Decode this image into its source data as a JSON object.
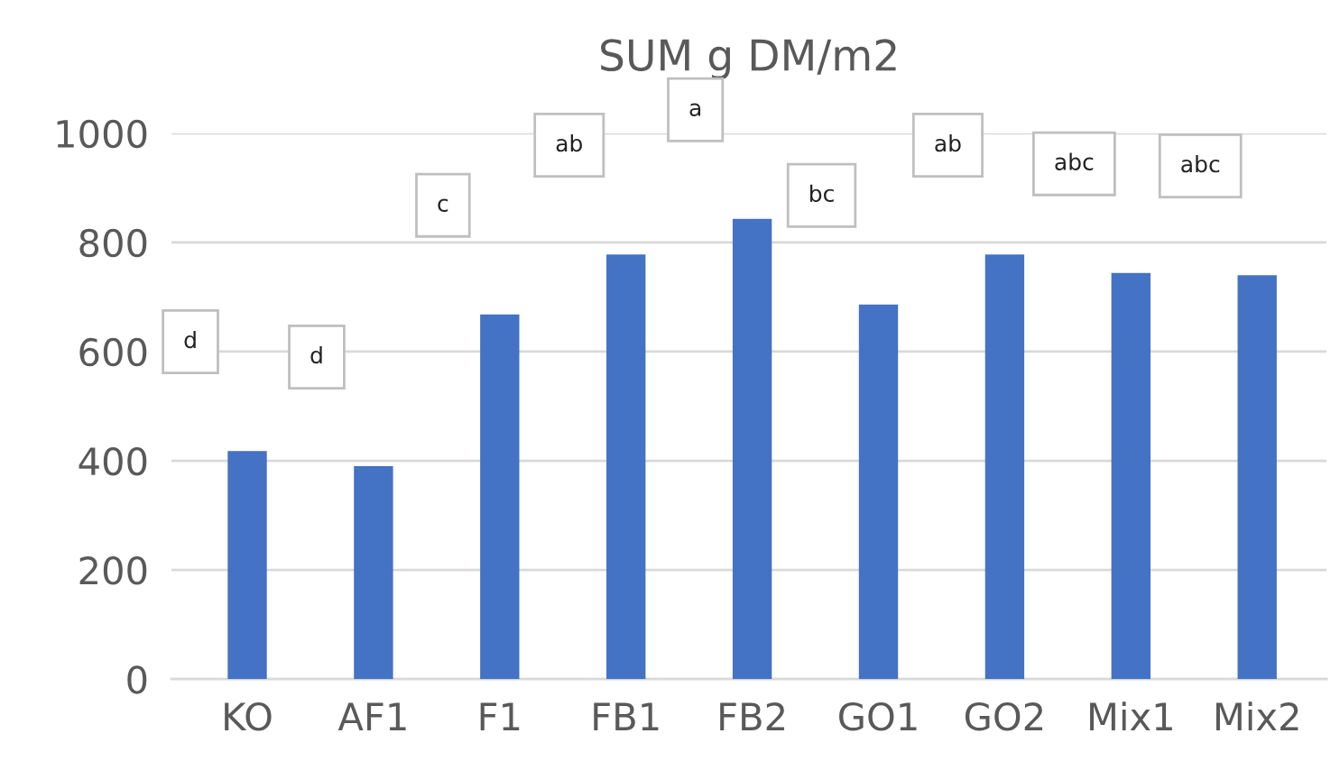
{
  "chart_data": {
    "type": "bar",
    "title": "SUM g DM/m2",
    "categories": [
      "KO",
      "AF1",
      "F1",
      "FB1",
      "FB2",
      "GO1",
      "GO2",
      "Mix1",
      "Mix2"
    ],
    "values": [
      418,
      390,
      668,
      778,
      843,
      686,
      778,
      744,
      740
    ],
    "color": "#4472c4",
    "ylim": [
      0,
      1000
    ],
    "yticks": [
      0,
      200,
      400,
      600,
      800,
      1000
    ],
    "grid": "y",
    "annotations": [
      "d",
      "d",
      "c",
      "ab",
      "a",
      "bc",
      "ab",
      "abc",
      "abc"
    ]
  }
}
